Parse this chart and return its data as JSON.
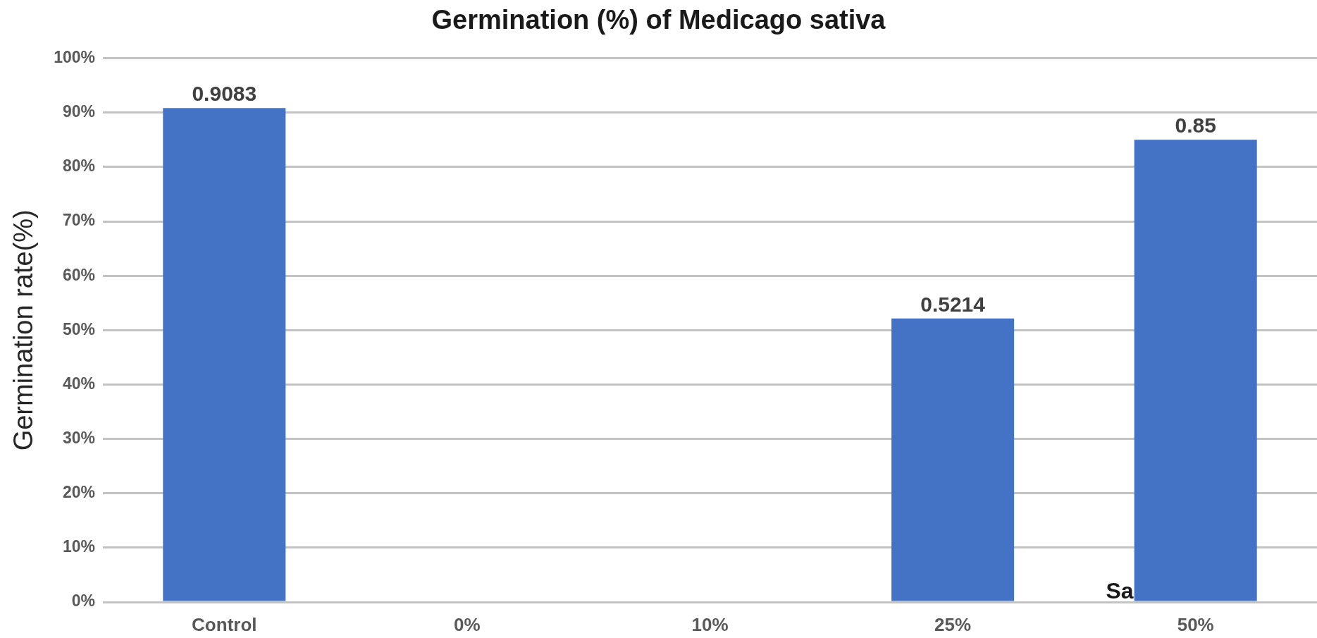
{
  "chart_data": {
    "type": "bar",
    "title": "Germination (%) of Medicago sativa",
    "ylabel": "Germination rate(%)",
    "categories": [
      "Control",
      "0%",
      "10%",
      "25%",
      "50%"
    ],
    "values": [
      0.9083,
      null,
      null,
      0.5214,
      0.85
    ],
    "color": "#4472c4",
    "ylim": [
      0,
      1
    ],
    "yticks": [
      {
        "value": 0,
        "label": "0%"
      },
      {
        "value": 0.1,
        "label": "10%"
      },
      {
        "value": 0.2,
        "label": "20%"
      },
      {
        "value": 0.3,
        "label": "30%"
      },
      {
        "value": 0.4,
        "label": "40%"
      },
      {
        "value": 0.5,
        "label": "50%"
      },
      {
        "value": 0.6,
        "label": "60%"
      },
      {
        "value": 0.7,
        "label": "70%"
      },
      {
        "value": 0.8,
        "label": "80%"
      },
      {
        "value": 0.9,
        "label": "90%"
      },
      {
        "value": 1,
        "label": "100%"
      }
    ],
    "grid": "y",
    "data_labels": true,
    "annotations": [
      "Sa"
    ]
  }
}
